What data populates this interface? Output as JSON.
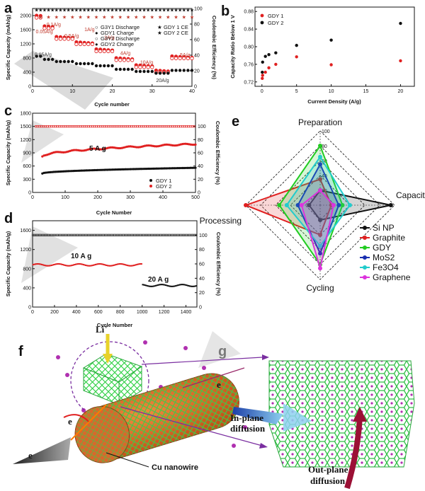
{
  "panel_letters": {
    "a": "a",
    "b": "b",
    "c": "c",
    "d": "d",
    "e": "e",
    "f": "f",
    "g": "g"
  },
  "colors": {
    "gdy1": "#111111",
    "gdy2": "#e02020",
    "grey_bg": "#bdbdbd"
  },
  "chart_data": [
    {
      "id": "a",
      "type": "scatter",
      "xlabel": "Cycle number",
      "ylabel": "Specific Capacity (mAh/g)",
      "y2label": "Coulombic Efficiency (%)",
      "xlim": [
        0,
        40
      ],
      "ylim": [
        0,
        2200
      ],
      "y2lim": [
        0,
        100
      ],
      "xticks": [
        0,
        10,
        20,
        30,
        40
      ],
      "yticks": [
        0,
        400,
        800,
        1200,
        1600,
        2000
      ],
      "y2ticks": [
        0,
        20,
        40,
        60,
        80,
        100
      ],
      "legend": [
        "G3Y1 Discharge",
        "GDY1 Charge",
        "G3Y2 Discharge",
        "GDY2 Charge",
        "GDY 1 CE",
        "GDY 2 CE"
      ],
      "rate_labels": [
        {
          "text": "0.05A/g",
          "x": 0.8,
          "y": 1500,
          "color": "gdy2"
        },
        {
          "text": "0.1A/g",
          "x": 3.5,
          "y": 1700,
          "color": "gdy2"
        },
        {
          "text": "0.5A/g",
          "x": 8,
          "y": 1380,
          "color": "gdy2"
        },
        {
          "text": "1A/g",
          "x": 13,
          "y": 1560,
          "color": "gdy2"
        },
        {
          "text": "2A/g",
          "x": 18,
          "y": 1330,
          "color": "gdy2"
        },
        {
          "text": "4A/g",
          "x": 22,
          "y": 890,
          "color": "gdy2"
        },
        {
          "text": "10A/g",
          "x": 27,
          "y": 630,
          "color": "gdy2"
        },
        {
          "text": "5A/g",
          "x": 37,
          "y": 840,
          "color": "gdy2"
        },
        {
          "text": "0.05A/g",
          "x": 0.5,
          "y": 850,
          "color": "gdy1"
        },
        {
          "text": "20A/g",
          "x": 31,
          "y": 120,
          "color": "gdy1"
        }
      ],
      "segments_gdy2": [
        [
          1,
          2,
          2000
        ],
        [
          3,
          5,
          1700
        ],
        [
          6,
          10,
          1400
        ],
        [
          11,
          15,
          1250
        ],
        [
          16,
          20,
          1050
        ],
        [
          21,
          25,
          800
        ],
        [
          26,
          30,
          600
        ],
        [
          31,
          34,
          450
        ],
        [
          35,
          40,
          850
        ]
      ],
      "segments_gdy1": [
        [
          1,
          2,
          850
        ],
        [
          3,
          5,
          760
        ],
        [
          6,
          10,
          700
        ],
        [
          11,
          15,
          640
        ],
        [
          16,
          20,
          580
        ],
        [
          21,
          25,
          480
        ],
        [
          26,
          30,
          420
        ],
        [
          31,
          34,
          370
        ],
        [
          35,
          40,
          450
        ]
      ],
      "ce_gdy1": 98,
      "ce_gdy2": 95
    },
    {
      "id": "b",
      "type": "scatter",
      "xlabel": "Current Density (A/g)",
      "ylabel": "Capacity Ratio Below 1 V",
      "xlim": [
        -1,
        22
      ],
      "ylim": [
        0.71,
        0.89
      ],
      "xticks": [
        0,
        5,
        10,
        15,
        20
      ],
      "yticks": [
        0.72,
        0.76,
        0.8,
        0.84,
        0.88
      ],
      "series": [
        {
          "name": "GDY 1",
          "color": "gdy2",
          "x": [
            0.05,
            0.1,
            0.5,
            1,
            2,
            5,
            10,
            20
          ],
          "y": [
            0.728,
            0.735,
            0.742,
            0.752,
            0.76,
            0.777,
            0.759,
            0.768
          ]
        },
        {
          "name": "GDY 2",
          "color": "gdy1",
          "x": [
            0.05,
            0.1,
            0.5,
            1,
            2,
            5,
            10,
            20
          ],
          "y": [
            0.742,
            0.765,
            0.778,
            0.782,
            0.786,
            0.803,
            0.815,
            0.853
          ]
        }
      ]
    },
    {
      "id": "c",
      "type": "scatter",
      "xlabel": "Cycle Number",
      "ylabel": "Specific Capacity (mAh/g)",
      "y2label": "Coulombic Efficiency (%)",
      "xlim": [
        0,
        500
      ],
      "ylim": [
        0,
        1800
      ],
      "y2lim": [
        0,
        120
      ],
      "xticks": [
        0,
        100,
        200,
        300,
        400,
        500
      ],
      "yticks": [
        0,
        300,
        600,
        900,
        1200,
        1500,
        1800
      ],
      "y2ticks": [
        0,
        20,
        40,
        60,
        80,
        100
      ],
      "annotation": "5 A g",
      "series": [
        {
          "name": "GDY 1",
          "color": "gdy1",
          "start": 430,
          "end": 560
        },
        {
          "name": "GDY 2",
          "color": "gdy2",
          "start": 820,
          "end": 1100
        }
      ],
      "ce": 100
    },
    {
      "id": "d",
      "type": "scatter",
      "xlabel": "Cycle Number",
      "ylabel": "Specific Capacity (mAh/g)",
      "y2label": "Coulombic Efficiency (%)",
      "xlim": [
        0,
        1500
      ],
      "ylim": [
        0,
        1800
      ],
      "y2lim": [
        0,
        120
      ],
      "xticks": [
        0,
        200,
        400,
        600,
        800,
        1000,
        1200,
        1400
      ],
      "yticks": [
        0,
        400,
        800,
        1200,
        1600
      ],
      "y2ticks": [
        0,
        20,
        40,
        60,
        80,
        100
      ],
      "annotations": [
        "10 A g",
        "20 A g"
      ],
      "series": [
        {
          "name": "10 A g-1",
          "color": "gdy2",
          "x_range": [
            0,
            1000
          ],
          "value": 880
        },
        {
          "name": "20 A g-1",
          "color": "gdy1",
          "x_range": [
            1000,
            1500
          ],
          "value": 450
        }
      ],
      "ce": 100
    },
    {
      "id": "e",
      "type": "radar",
      "axes": [
        "Preparation",
        "Capacity",
        "Cycling",
        "Processing"
      ],
      "rticks": [
        20,
        40,
        60,
        80,
        100
      ],
      "series": [
        {
          "name": "Si NP",
          "color": "#111111",
          "values": [
            20,
            95,
            20,
            15
          ]
        },
        {
          "name": "Graphite",
          "color": "#e02020",
          "values": [
            35,
            15,
            40,
            100
          ]
        },
        {
          "name": "GDY",
          "color": "#22cc22",
          "values": [
            80,
            30,
            80,
            55
          ]
        },
        {
          "name": "MoS2",
          "color": "#1a2fb0",
          "values": [
            55,
            25,
            65,
            30
          ]
        },
        {
          "name": "Fe3O4",
          "color": "#22cccc",
          "values": [
            65,
            40,
            55,
            45
          ]
        },
        {
          "name": "Graphene",
          "color": "#dd33dd",
          "values": [
            20,
            18,
            85,
            25
          ]
        }
      ]
    }
  ],
  "diagram": {
    "li_label": "Li",
    "li_sup": "+",
    "electron": "e",
    "cu_label": "Cu nanowire",
    "inplane": [
      "In-plane",
      "diffusion"
    ],
    "outplane": [
      "Out-plane",
      "diffusion"
    ]
  }
}
